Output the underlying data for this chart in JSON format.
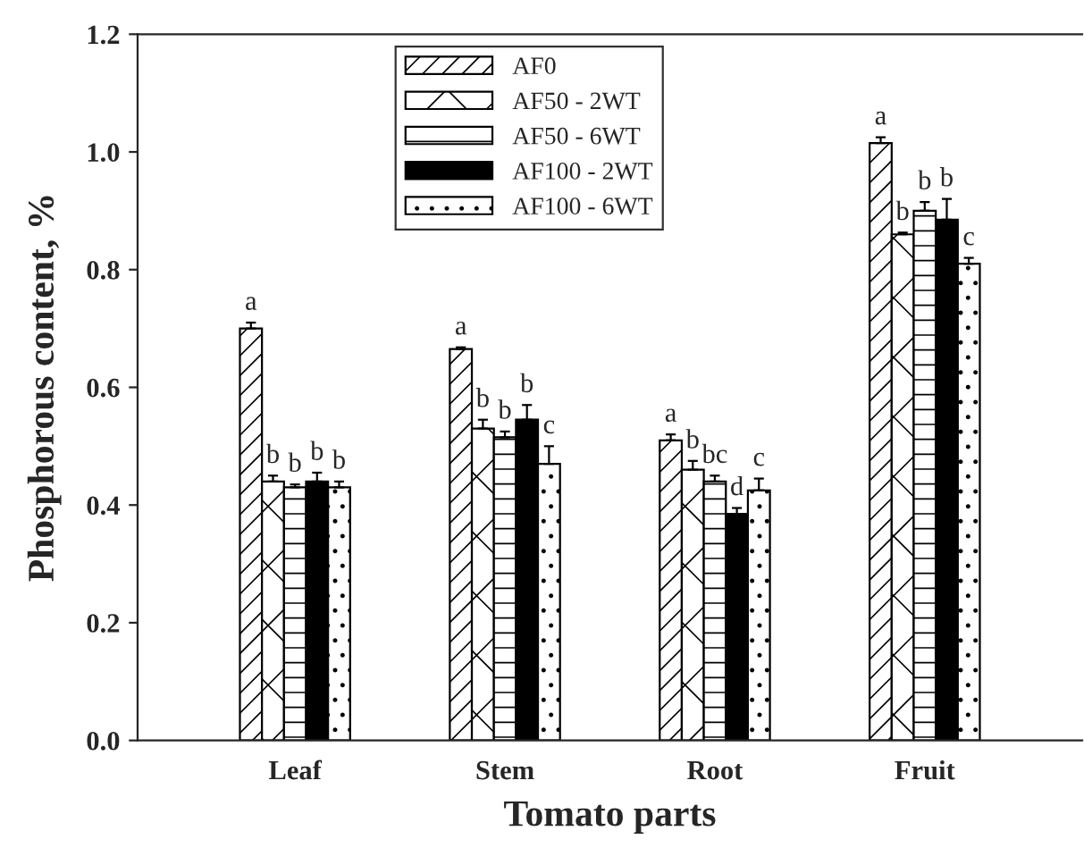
{
  "chart_data": {
    "type": "bar",
    "xlabel": "Tomato parts",
    "ylabel": "Phosphorous content, %",
    "categories": [
      "Leaf",
      "Stem",
      "Root",
      "Fruit"
    ],
    "series": [
      {
        "name": "AF0",
        "color": "#000000",
        "values": [
          0.7,
          0.665,
          0.51,
          1.015
        ],
        "errors": [
          0.01,
          0.003,
          0.01,
          0.01
        ],
        "value_labels": [
          "a",
          "a",
          "a",
          "a"
        ]
      },
      {
        "name": "AF50 - 2WT",
        "color": "#000000",
        "values": [
          0.44,
          0.53,
          0.46,
          0.86
        ],
        "errors": [
          0.01,
          0.015,
          0.015,
          0.003
        ],
        "value_labels": [
          "b",
          "b",
          "b",
          "b"
        ]
      },
      {
        "name": "AF50 - 6WT",
        "color": "#000000",
        "values": [
          0.43,
          0.515,
          0.44,
          0.9
        ],
        "errors": [
          0.005,
          0.01,
          0.01,
          0.015
        ],
        "value_labels": [
          "b",
          "b",
          "bc",
          "b"
        ]
      },
      {
        "name": "AF100 - 2WT",
        "color": "#000000",
        "values": [
          0.44,
          0.545,
          0.385,
          0.885
        ],
        "errors": [
          0.015,
          0.025,
          0.01,
          0.035
        ],
        "value_labels": [
          "b",
          "b",
          "d",
          "b"
        ]
      },
      {
        "name": "AF100 - 6WT",
        "color": "#000000",
        "values": [
          0.43,
          0.47,
          0.425,
          0.81
        ],
        "errors": [
          0.01,
          0.03,
          0.02,
          0.01
        ],
        "value_labels": [
          "b",
          "c",
          "c",
          "c"
        ]
      }
    ],
    "ylim": [
      0,
      1.2
    ],
    "yticks": [
      {
        "value": 0,
        "label": "0.0"
      },
      0.2,
      0.4,
      0.6,
      0.8,
      {
        "value": 1,
        "label": "1.0"
      },
      1.2
    ],
    "grid": false,
    "legend": "top left"
  }
}
